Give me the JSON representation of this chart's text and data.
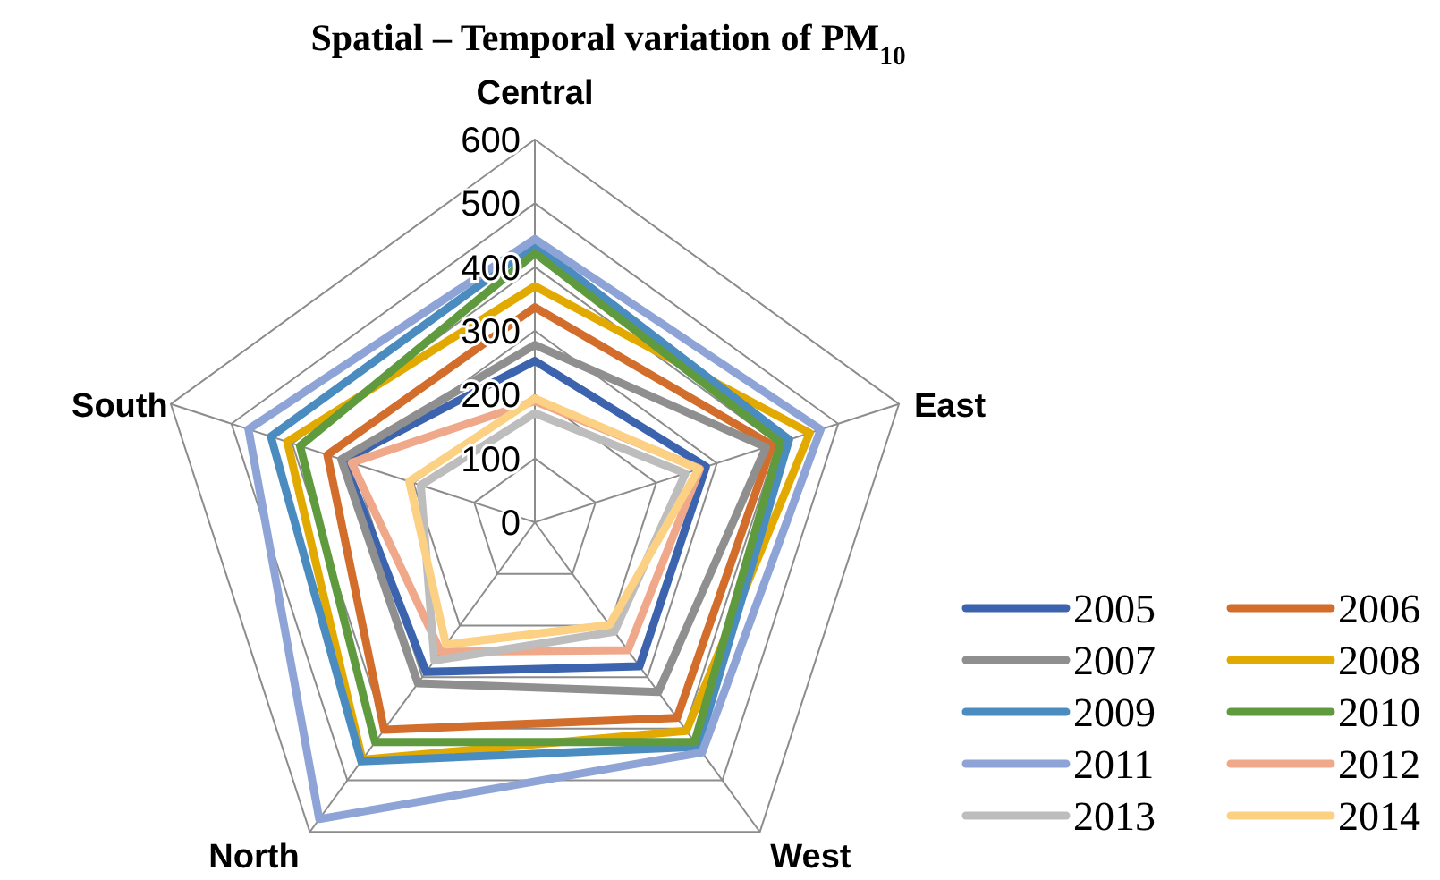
{
  "chart_data": {
    "type": "radar",
    "title": "Spatial – Temporal variation of PM$_{10}$",
    "categories": [
      "Central",
      "East",
      "West",
      "North",
      "South"
    ],
    "ylim": [
      0,
      600
    ],
    "yticks": [
      0,
      100,
      200,
      300,
      400,
      500,
      600
    ],
    "grid": true,
    "legend": "bottom right",
    "marker": "none",
    "series": [
      {
        "name": "2005",
        "color": "#3c63ae",
        "values": [
          253,
          282,
          279,
          290,
          315
        ]
      },
      {
        "name": "2006",
        "color": "#d26d2b",
        "values": [
          337,
          391,
          379,
          402,
          342
        ]
      },
      {
        "name": "2007",
        "color": "#8f8f8f",
        "values": [
          278,
          381,
          329,
          312,
          319
        ]
      },
      {
        "name": "2008",
        "color": "#e2aa00",
        "values": [
          370,
          453,
          404,
          460,
          408
        ]
      },
      {
        "name": "2009",
        "color": "#4a8cc0",
        "values": [
          435,
          419,
          435,
          463,
          435
        ]
      },
      {
        "name": "2010",
        "color": "#5f9a3f",
        "values": [
          422,
          405,
          426,
          426,
          387
        ]
      },
      {
        "name": "2011",
        "color": "#8fa4d6",
        "values": [
          444,
          471,
          446,
          575,
          472
        ]
      },
      {
        "name": "2012",
        "color": "#f0a88b",
        "values": [
          190,
          272,
          248,
          251,
          302
        ]
      },
      {
        "name": "2013",
        "color": "#bdbdbd",
        "values": [
          171,
          248,
          212,
          268,
          188
        ]
      },
      {
        "name": "2014",
        "color": "#fdd183",
        "values": [
          194,
          270,
          199,
          237,
          207
        ]
      }
    ]
  }
}
